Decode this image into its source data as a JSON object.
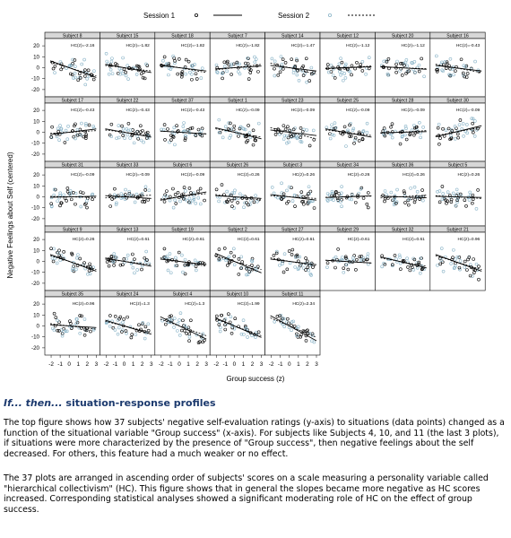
{
  "legend": {
    "session1": "Session 1",
    "session2": "Session 2"
  },
  "axes": {
    "ylabel": "Negative Feelings about Self (centered)",
    "xlabel": "Group success (z)",
    "y_ticks": [
      "20",
      "10",
      "0",
      "-10",
      "-20"
    ],
    "x_ticks": [
      "-2",
      "-1",
      "0",
      "1",
      "2",
      "3"
    ]
  },
  "colors": {
    "session1": "#000000",
    "session2": "#8ab4c8",
    "header_bg": "#d7d7d7",
    "title": "#1c3a6e"
  },
  "chart_data": {
    "type": "scatter",
    "xlabel": "Group success (z)",
    "ylabel": "Negative Feelings about Self (centered)",
    "xlim": [
      -2.5,
      3.2
    ],
    "ylim": [
      -25,
      25
    ],
    "series": [
      {
        "name": "Session 1"
      },
      {
        "name": "Session 2"
      }
    ],
    "panels": [
      {
        "subject": "Subject 8",
        "hc": "HC(z)=-2.16",
        "s1": -3.0,
        "s2": -2.5
      },
      {
        "subject": "Subject 15",
        "hc": "HC(z)=-1.82",
        "s1": -1.5,
        "s2": -1.0
      },
      {
        "subject": "Subject 18",
        "hc": "HC(z)=-1.82",
        "s1": -1.0,
        "s2": -1.5
      },
      {
        "subject": "Subject 7",
        "hc": "HC(z)=-1.82",
        "s1": 0.5,
        "s2": 1.0
      },
      {
        "subject": "Subject 14",
        "hc": "HC(z)=-1.47",
        "s1": -1.0,
        "s2": -2.0
      },
      {
        "subject": "Subject 12",
        "hc": "HC(z)=-1.12",
        "s1": 0.3,
        "s2": 0.5
      },
      {
        "subject": "Subject 20",
        "hc": "HC(z)=-1.12",
        "s1": -0.5,
        "s2": -0.3
      },
      {
        "subject": "Subject 16",
        "hc": "HC(z)=-0.43",
        "s1": -1.0,
        "s2": -1.5
      },
      {
        "subject": "Subject 17",
        "hc": "HC(z)=-0.43",
        "s1": 1.0,
        "s2": 0.5
      },
      {
        "subject": "Subject 22",
        "hc": "HC(z)=-0.43",
        "s1": -1.5,
        "s2": -1.0
      },
      {
        "subject": "Subject 37",
        "hc": "HC(z)=-0.43",
        "s1": -0.5,
        "s2": -0.5
      },
      {
        "subject": "Subject 1",
        "hc": "HC(z)=-0.09",
        "s1": -2.0,
        "s2": -1.5
      },
      {
        "subject": "Subject 23",
        "hc": "HC(z)=-0.09",
        "s1": -1.0,
        "s2": -2.0
      },
      {
        "subject": "Subject 25",
        "hc": "HC(z)=-0.09",
        "s1": -1.5,
        "s2": -1.0
      },
      {
        "subject": "Subject 28",
        "hc": "HC(z)=-0.09",
        "s1": 0.2,
        "s2": 0.5
      },
      {
        "subject": "Subject 30",
        "hc": "HC(z)=-0.09",
        "s1": 2.0,
        "s2": 1.5
      },
      {
        "subject": "Subject 31",
        "hc": "HC(z)=-0.09",
        "s1": 0.2,
        "s2": -0.2
      },
      {
        "subject": "Subject 33",
        "hc": "HC(z)=-0.09",
        "s1": -0.5,
        "s2": 0.5
      },
      {
        "subject": "Subject 6",
        "hc": "HC(z)=-0.09",
        "s1": 1.5,
        "s2": 1.0
      },
      {
        "subject": "Subject 26",
        "hc": "HC(z)=0.26",
        "s1": -0.5,
        "s2": -1.0
      },
      {
        "subject": "Subject 3",
        "hc": "HC(z)=0.26",
        "s1": -1.0,
        "s2": -0.5
      },
      {
        "subject": "Subject 34",
        "hc": "HC(z)=0.26",
        "s1": 0.3,
        "s2": 0.2
      },
      {
        "subject": "Subject 36",
        "hc": "HC(z)=0.26",
        "s1": -0.3,
        "s2": 0.5
      },
      {
        "subject": "Subject 5",
        "hc": "HC(z)=0.26",
        "s1": -0.2,
        "s2": -0.5
      },
      {
        "subject": "Subject 9",
        "hc": "HC(z)=0.26",
        "s1": -3.0,
        "s2": -2.5
      },
      {
        "subject": "Subject 13",
        "hc": "HC(z)=0.61",
        "s1": -1.5,
        "s2": -1.0
      },
      {
        "subject": "Subject 19",
        "hc": "HC(z)=0.61",
        "s1": -1.0,
        "s2": -1.5
      },
      {
        "subject": "Subject 2",
        "hc": "HC(z)=0.61",
        "s1": -3.5,
        "s2": -2.5
      },
      {
        "subject": "Subject 27",
        "hc": "HC(z)=0.61",
        "s1": -1.0,
        "s2": -1.5
      },
      {
        "subject": "Subject 29",
        "hc": "HC(z)=0.61",
        "s1": -0.5,
        "s2": -0.5
      },
      {
        "subject": "Subject 32",
        "hc": "HC(z)=0.61",
        "s1": -2.0,
        "s2": -1.5
      },
      {
        "subject": "Subject 21",
        "hc": "HC(z)=0.96",
        "s1": -3.0,
        "s2": -2.5
      },
      {
        "subject": "Subject 35",
        "hc": "HC(z)=0.96",
        "s1": -0.5,
        "s2": -1.0
      },
      {
        "subject": "Subject 24",
        "hc": "HC(z)=1.3",
        "s1": -2.5,
        "s2": -2.0
      },
      {
        "subject": "Subject 4",
        "hc": "HC(z)=1.3",
        "s1": -4.0,
        "s2": -3.0
      },
      {
        "subject": "Subject 10",
        "hc": "HC(z)=1.99",
        "s1": -3.5,
        "s2": -3.0
      },
      {
        "subject": "Subject 11",
        "hc": "HC(z)=2.34",
        "s1": -4.5,
        "s2": -3.5
      }
    ]
  },
  "caption": {
    "title_italic": "If... then...",
    "title_rest": " situation-response profiles",
    "p1": "The top figure shows how 37 subjects' negative self-evaluation ratings (y-axis) to situations (data points) changed as a function of the situational variable \"Group success\" (x-axis).  For subjects like Subjects 4, 10, and 11 (the last 3 plots), if situations were more characterized by the presence of \"Group success\", then negative feelings about the self decreased.  For others, this feature had a much weaker or no effect.",
    "p2": "The 37 plots are arranged in ascending order of subjects' scores on a scale measuring a personality variable called \"hierarchical collectivism\" (HC).  This figure shows that in general the slopes became more negative as HC scores increased.  Corresponding statistical analyses showed a significant moderating role of HC on the effect of group success."
  }
}
